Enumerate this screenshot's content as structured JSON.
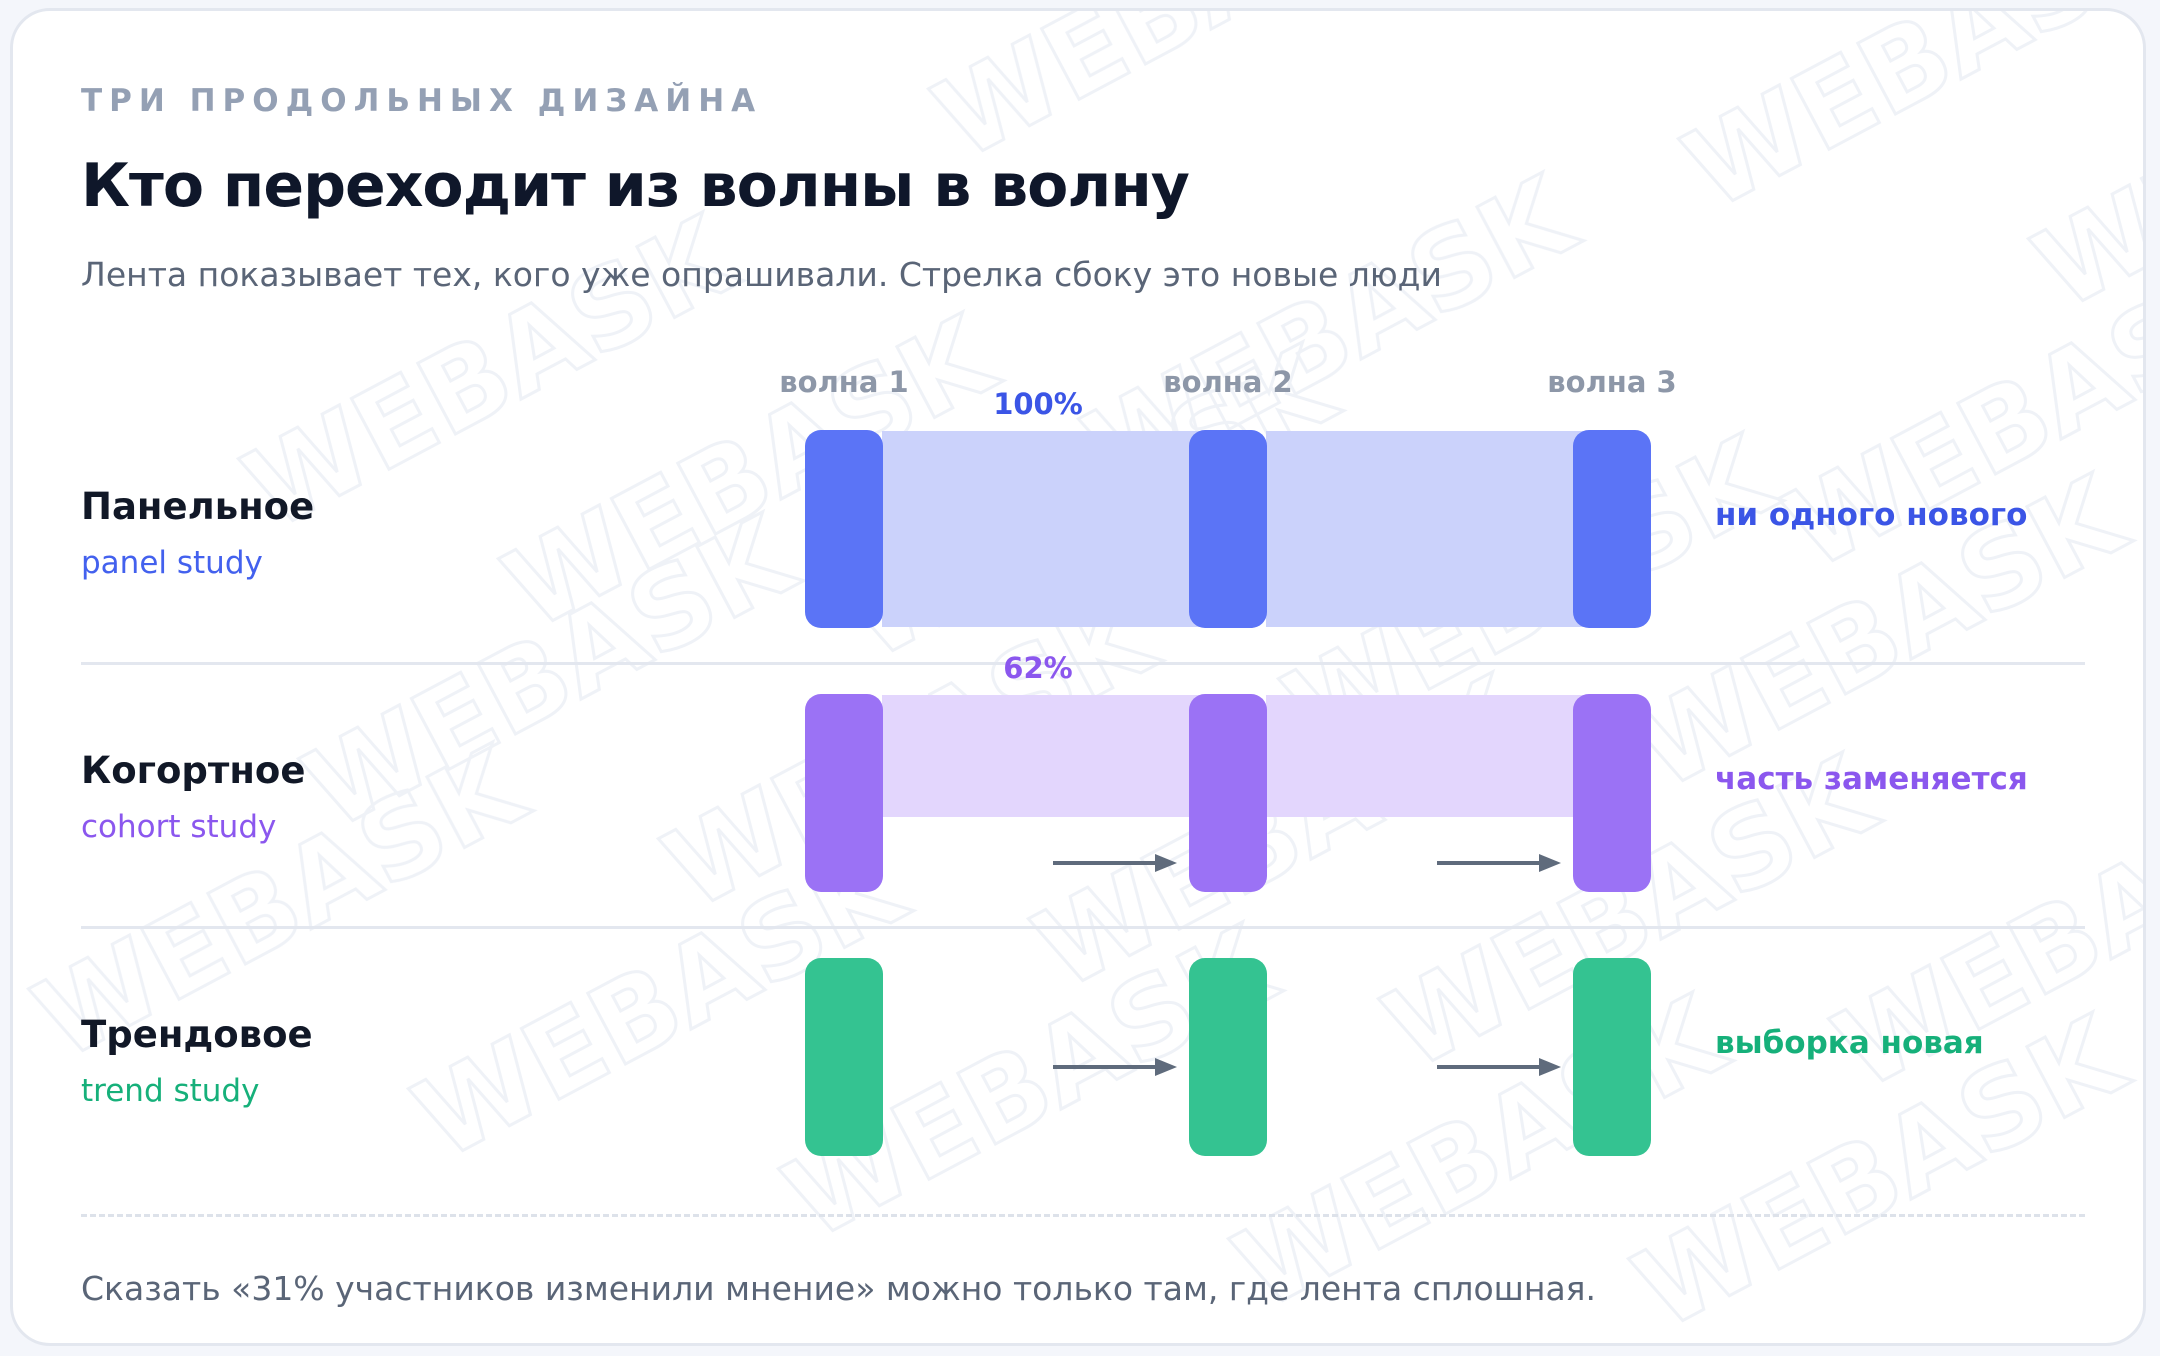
{
  "header": {
    "eyebrow": "ТРИ ПРОДОЛЬНЫХ ДИЗАЙНА",
    "title": "Кто переходит из волны в волну",
    "subtitle": "Лента показывает тех, кого уже опрашивали. Стрелка сбоку это новые люди"
  },
  "waves": [
    "волна 1",
    "волна 2",
    "волна 3"
  ],
  "rows": [
    {
      "name": "Панельное",
      "sub": "panel study",
      "percent": "100%",
      "note": "ни одного нового",
      "color": "#5b74f6",
      "band_color": "#cbd2fb",
      "text_color": "#3b55e6",
      "sub_color": "#4361ee"
    },
    {
      "name": "Когортное",
      "sub": "cohort study",
      "percent": "62%",
      "note": "часть заменяется",
      "color": "#9b72f5",
      "band_color": "#e3d6fd",
      "text_color": "#8b57ee",
      "sub_color": "#8b57ee"
    },
    {
      "name": "Трендовое",
      "sub": "trend study",
      "percent": "",
      "note": "выборка новая",
      "color": "#34c391",
      "band_color": "",
      "text_color": "#16b07a",
      "sub_color": "#16b07a"
    }
  ],
  "arrow_color": "#5f6b7c",
  "footer": "Сказать «31% участников изменили мнение» можно только там, где лента сплошная."
}
